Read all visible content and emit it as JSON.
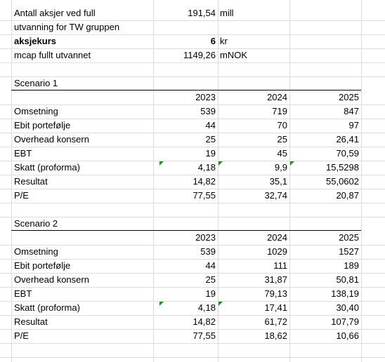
{
  "top": {
    "shares_label_1": "Antall aksjer ved full",
    "shares_label_2": "utvanning for TW gruppen",
    "shares_value": "191,54",
    "shares_unit": "mill",
    "price_label": "aksjekurs",
    "price_value": "6",
    "price_unit": "kr",
    "mcap_label": "mcap fullt utvannet",
    "mcap_value": "1149,26",
    "mcap_unit": "mNOK"
  },
  "scenarios": [
    {
      "title": "Scenario 1",
      "years": [
        "2023",
        "2024",
        "2025"
      ],
      "rows": [
        {
          "label": "Omsetning",
          "values": [
            "539",
            "719",
            "847"
          ]
        },
        {
          "label": "Ebit portefølje",
          "values": [
            "44",
            "70",
            "97"
          ]
        },
        {
          "label": "Overhead konsern",
          "values": [
            "25",
            "25",
            "26,41"
          ]
        },
        {
          "label": "EBT",
          "values": [
            "19",
            "45",
            "70,59"
          ]
        },
        {
          "label": "Skatt (proforma)",
          "values": [
            "4,18",
            "9,9",
            "15,5298"
          ]
        },
        {
          "label": "Resultat",
          "values": [
            "14,82",
            "35,1",
            "55,0602"
          ]
        },
        {
          "label": "P/E",
          "values": [
            "77,55",
            "32,74",
            "20,87"
          ]
        }
      ]
    },
    {
      "title": "Scenario 2",
      "years": [
        "2023",
        "2024",
        "2025"
      ],
      "rows": [
        {
          "label": "Omsetning",
          "values": [
            "539",
            "1029",
            "1527"
          ]
        },
        {
          "label": "Ebit portefølje",
          "values": [
            "44",
            "111",
            "189"
          ]
        },
        {
          "label": "Overhead konsern",
          "values": [
            "25",
            "31,87",
            "50,81"
          ]
        },
        {
          "label": "EBT",
          "values": [
            "19",
            "79,13",
            "138,19"
          ]
        },
        {
          "label": "Skatt (proforma)",
          "values": [
            "4,18",
            "17,41",
            "30,40"
          ]
        },
        {
          "label": "Resultat",
          "values": [
            "14,82",
            "61,72",
            "107,79"
          ]
        },
        {
          "label": "P/E",
          "values": [
            "77,55",
            "18,62",
            "10,66"
          ]
        }
      ]
    }
  ],
  "colors": {
    "gridline": "#dadcdd",
    "error_indicator": "#1f8a2e"
  }
}
